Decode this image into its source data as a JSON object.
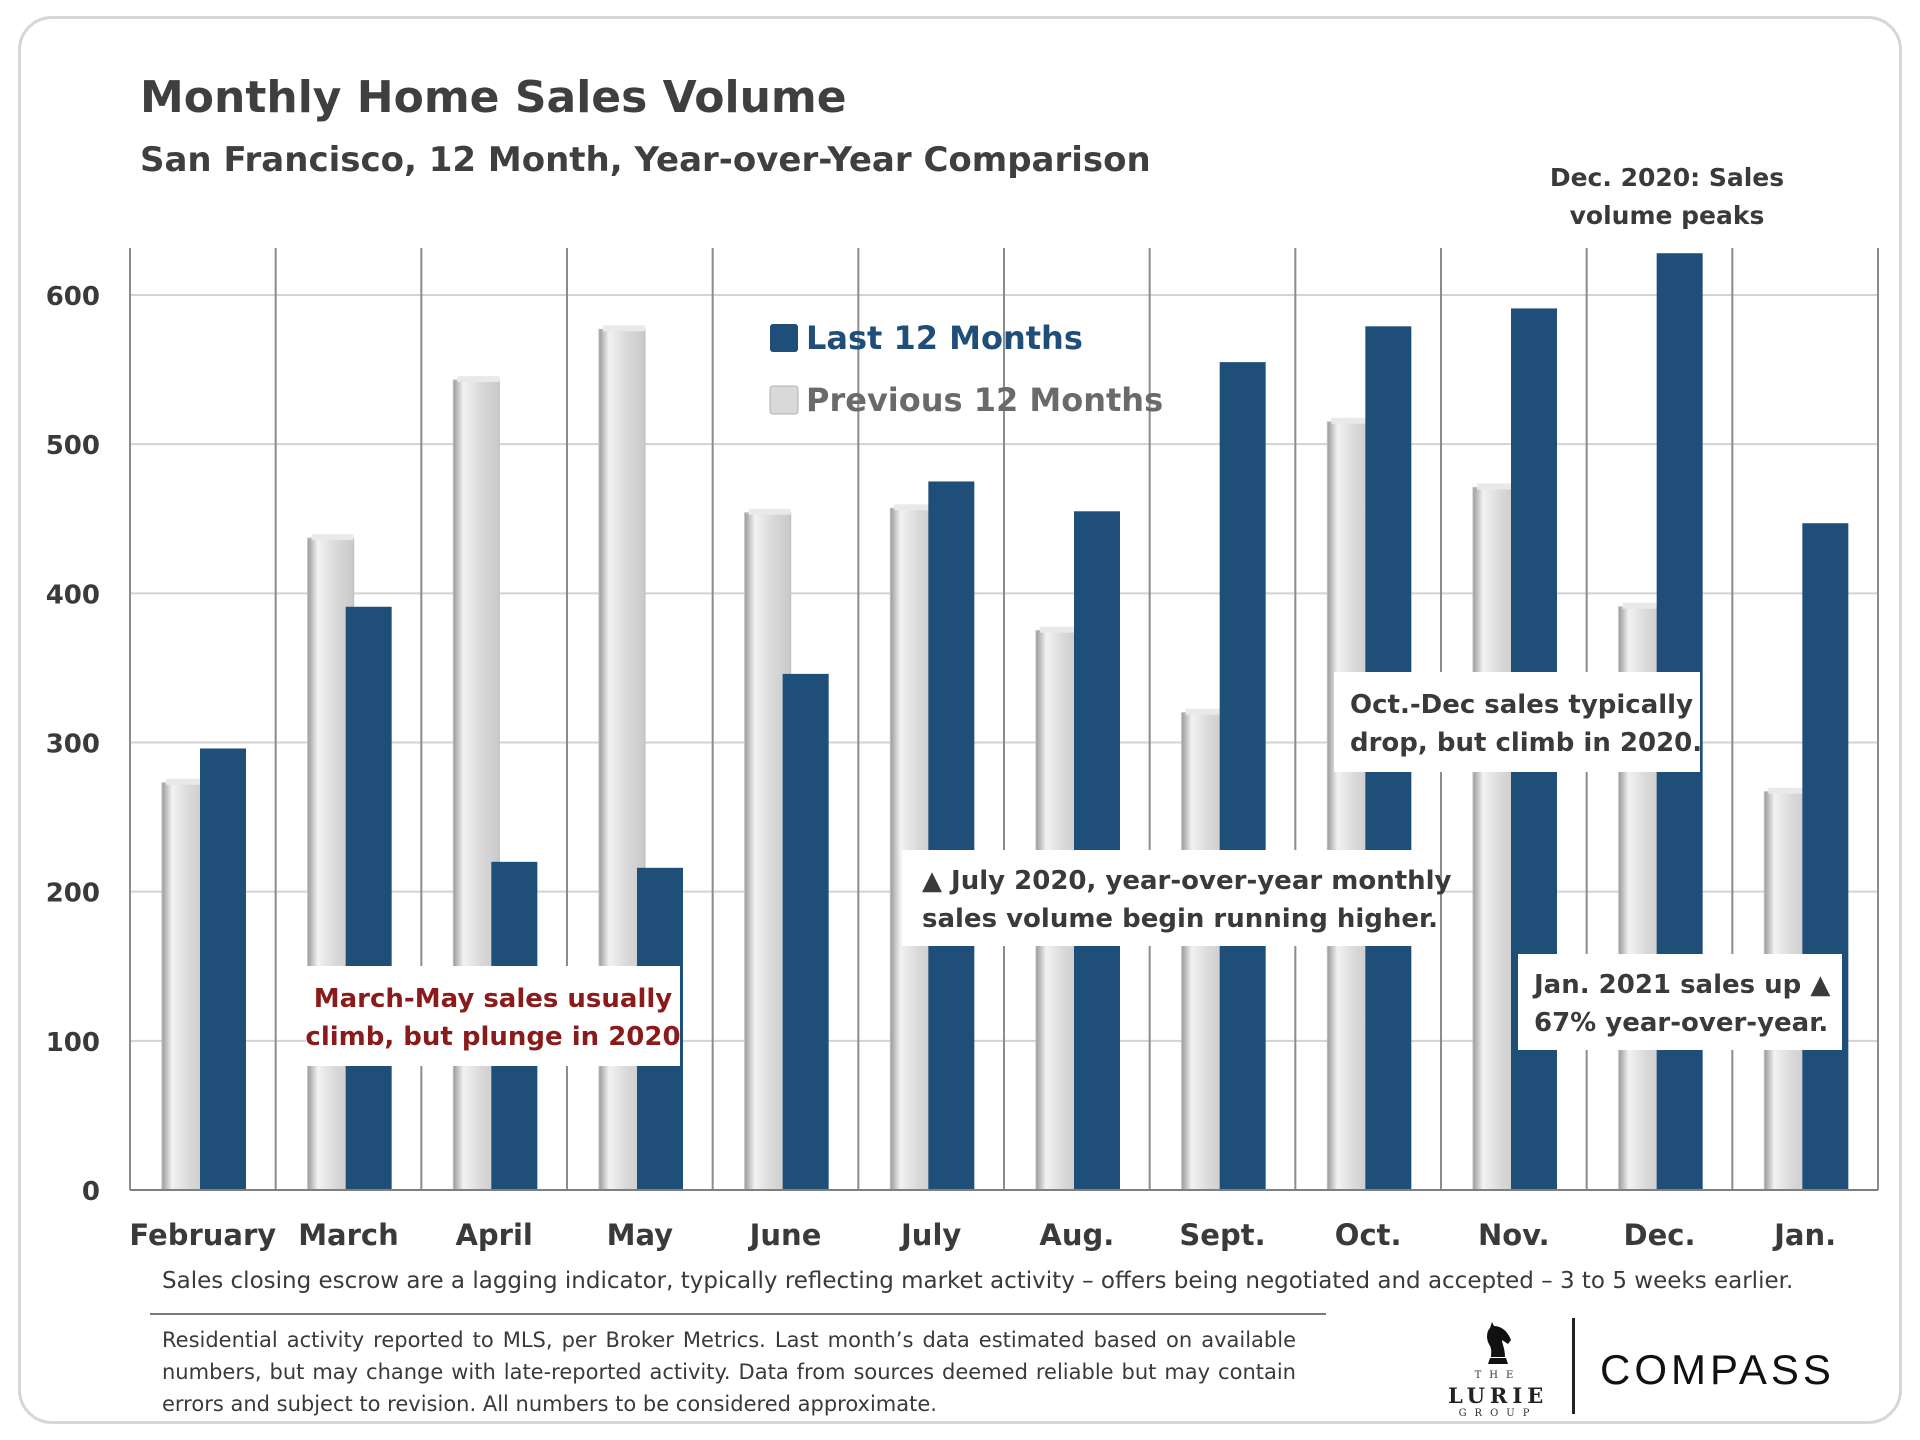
{
  "title": "Monthly Home Sales Volume",
  "subtitle": "San Francisco, 12 Month, Year-over-Year  Comparison",
  "colors": {
    "last": "#1f4e79",
    "previous": "#d9d9d9",
    "previous_dark": "#9a9a9a",
    "grid": "#d3d3d3",
    "axis": "#7f7f7f",
    "callout_red": "#8b1a1a"
  },
  "chart_data": {
    "type": "bar",
    "categories": [
      "February",
      "March",
      "April",
      "May",
      "June",
      "July",
      "Aug.",
      "Sept.",
      "Oct.",
      "Nov.",
      "Dec.",
      "Jan."
    ],
    "series": [
      {
        "name": "Previous 12 Months",
        "values": [
          273,
          437,
          543,
          577,
          454,
          457,
          375,
          320,
          515,
          471,
          391,
          267
        ]
      },
      {
        "name": "Last 12 Months",
        "values": [
          296,
          391,
          220,
          216,
          346,
          475,
          455,
          555,
          579,
          591,
          628,
          447
        ]
      }
    ],
    "ylim": [
      0,
      600
    ],
    "y_ticks": [
      "0",
      "100",
      "200",
      "300",
      "400",
      "500",
      "600"
    ],
    "grid": true,
    "legend_position": "top-center",
    "legend": [
      "Last 12 Months",
      "Previous 12 Months"
    ],
    "annotations": {
      "peak": [
        "Dec. 2020: Sales",
        "volume peaks"
      ],
      "march_may": [
        "March-May sales usually",
        "climb, but plunge in 2020"
      ],
      "july": [
        "▲ July 2020, year-over-year monthly",
        "sales volume begin running higher."
      ],
      "oct_dec": [
        "Oct.-Dec  sales  typically",
        "drop, but climb in 2020."
      ],
      "jan": [
        "Jan. 2021 sales up  ▲",
        "67% year-over-year."
      ]
    }
  },
  "footer": {
    "lag_note": "Sales closing escrow are a lagging indicator, typically reflecting market activity – offers being negotiated and accepted – 3 to 5 weeks earlier.",
    "disclaimer": "Residential activity reported to MLS, per Broker Metrics. Last month’s data estimated based on available numbers, but may change with late-reported activity. Data from sources deemed reliable but may contain errors and subject to revision. All numbers to be considered approximate."
  },
  "logos": {
    "lurie_the": "THE",
    "lurie_name": "LURIE",
    "lurie_group": "GROUP",
    "compass": "COMPASS"
  }
}
